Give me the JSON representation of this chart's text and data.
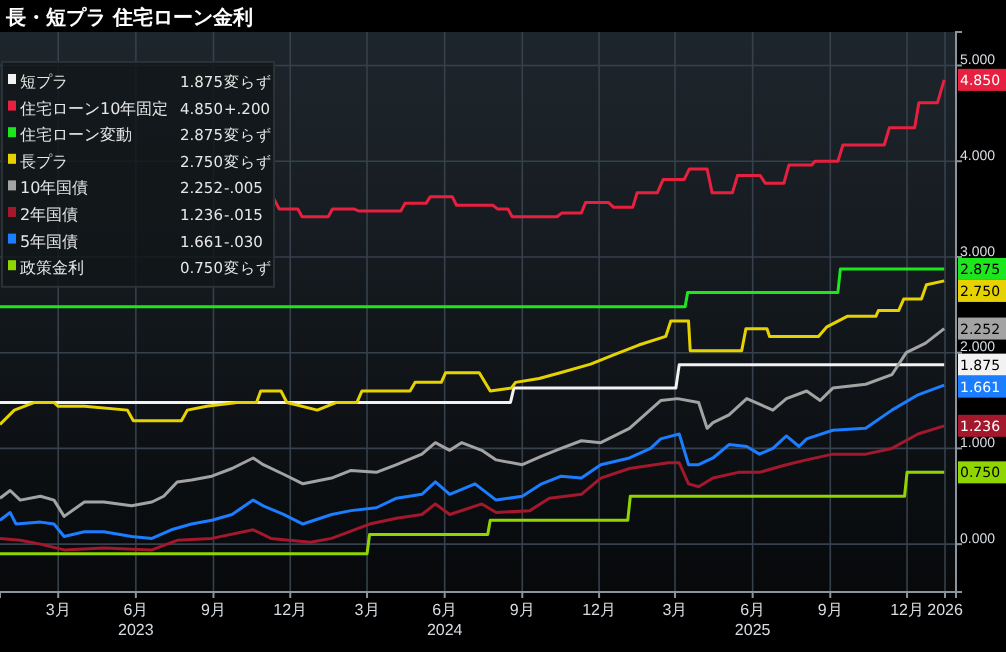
{
  "chart_data": {
    "type": "line",
    "title": "長・短プラ 住宅ローン金利",
    "xlim": [
      "2022-12-22",
      "2026-01-28"
    ],
    "xticks": [
      {
        "value": "2023-03-01",
        "label": "3月"
      },
      {
        "value": "2023-06-01",
        "label": "6月\n2023"
      },
      {
        "value": "2023-09-01",
        "label": "9月"
      },
      {
        "value": "2023-12-01",
        "label": "12月"
      },
      {
        "value": "2024-03-01",
        "label": "3月"
      },
      {
        "value": "2024-06-01",
        "label": "6月\n2024"
      },
      {
        "value": "2024-09-01",
        "label": "9月"
      },
      {
        "value": "2024-12-01",
        "label": "12月"
      },
      {
        "value": "2025-03-01",
        "label": "3月"
      },
      {
        "value": "2025-06-01",
        "label": "6月\n2025"
      },
      {
        "value": "2025-09-01",
        "label": "9月"
      },
      {
        "value": "2025-12-01",
        "label": "12月"
      },
      {
        "value": "2026-01-15",
        "label": "2026"
      }
    ],
    "ylim": [
      -0.5,
      5.35
    ],
    "yticks": [
      {
        "value": 0,
        "label": "0.000"
      },
      {
        "value": 1,
        "label": "1.000"
      },
      {
        "value": 2,
        "label": "2.000"
      },
      {
        "value": 3,
        "label": "3.000"
      },
      {
        "value": 4,
        "label": "4.000"
      },
      {
        "value": 5,
        "label": "5.000"
      }
    ],
    "grid": true,
    "legend": "top left",
    "marker": "none",
    "line_style": "solid",
    "annotations": [
      "変らず",
      "+.200",
      "変らず",
      "変らず",
      "-.005",
      "-.015",
      "-.030",
      "変らず"
    ],
    "series": [
      {
        "name": "短プラ",
        "color": "#f2f2f2",
        "x": [
          "2022-12-22",
          "2024-08-18",
          "2024-08-22",
          "2025-03-02",
          "2025-03-06",
          "2026-01-14"
        ],
        "values": [
          1.48,
          1.48,
          1.63,
          1.63,
          1.875,
          1.875
        ],
        "value_labels": [
          null,
          null,
          null,
          null,
          null,
          "1.875"
        ]
      },
      {
        "name": "住宅ローン10年固定",
        "color": "#e8203f",
        "x": [
          "2023-11-10",
          "2023-11-12",
          "2023-11-18",
          "2023-12-10",
          "2023-12-15",
          "2024-01-15",
          "2024-01-20",
          "2024-02-15",
          "2024-02-20",
          "2024-04-10",
          "2024-04-15",
          "2024-05-10",
          "2024-05-15",
          "2024-06-10",
          "2024-06-15",
          "2024-07-28",
          "2024-08-03",
          "2024-08-15",
          "2024-08-20",
          "2024-10-12",
          "2024-10-18",
          "2024-11-10",
          "2024-11-15",
          "2024-12-12",
          "2024-12-18",
          "2025-01-10",
          "2025-01-15",
          "2025-02-08",
          "2025-02-15",
          "2025-03-12",
          "2025-03-18",
          "2025-04-08",
          "2025-04-14",
          "2025-05-08",
          "2025-05-14",
          "2025-06-10",
          "2025-06-16",
          "2025-07-08",
          "2025-07-14",
          "2025-08-10",
          "2025-08-14",
          "2025-09-10",
          "2025-09-16",
          "2025-11-04",
          "2025-11-10",
          "2025-12-10",
          "2025-12-15",
          "2026-01-06",
          "2026-01-14"
        ],
        "values": [
          3.6,
          3.6,
          3.5,
          3.5,
          3.42,
          3.42,
          3.5,
          3.5,
          3.48,
          3.48,
          3.56,
          3.56,
          3.63,
          3.63,
          3.54,
          3.54,
          3.5,
          3.5,
          3.42,
          3.42,
          3.46,
          3.46,
          3.57,
          3.57,
          3.52,
          3.52,
          3.67,
          3.67,
          3.81,
          3.81,
          3.92,
          3.92,
          3.67,
          3.67,
          3.85,
          3.85,
          3.77,
          3.77,
          3.96,
          3.96,
          4.0,
          4.0,
          4.17,
          4.17,
          4.35,
          4.35,
          4.61,
          4.61,
          4.85
        ],
        "value_labels": [
          null,
          null,
          null,
          null,
          null,
          null,
          null,
          null,
          null,
          null,
          null,
          null,
          null,
          null,
          null,
          null,
          null,
          null,
          null,
          null,
          null,
          null,
          null,
          null,
          null,
          null,
          null,
          null,
          null,
          null,
          null,
          null,
          null,
          null,
          null,
          null,
          null,
          null,
          null,
          null,
          null,
          null,
          null,
          null,
          null,
          null,
          null,
          null,
          "4.850"
        ]
      },
      {
        "name": "住宅ローン変動",
        "color": "#1ee61e",
        "x": [
          "2022-12-22",
          "2025-03-13",
          "2025-03-16",
          "2025-09-10",
          "2025-09-13",
          "2026-01-14"
        ],
        "values": [
          2.48,
          2.48,
          2.63,
          2.63,
          2.875,
          2.875
        ],
        "value_labels": [
          null,
          null,
          null,
          null,
          null,
          "2.875"
        ]
      },
      {
        "name": "長プラ",
        "color": "#e6d200",
        "x": [
          "2022-12-22",
          "2023-01-08",
          "2023-02-01",
          "2023-02-24",
          "2023-03-01",
          "2023-04-01",
          "2023-05-22",
          "2023-05-29",
          "2023-07-25",
          "2023-08-01",
          "2023-08-24",
          "2023-09-29",
          "2023-10-22",
          "2023-10-27",
          "2023-11-20",
          "2023-11-27",
          "2024-01-02",
          "2024-01-25",
          "2024-02-18",
          "2024-02-24",
          "2024-04-21",
          "2024-04-27",
          "2024-05-28",
          "2024-06-02",
          "2024-07-12",
          "2024-07-25",
          "2024-08-19",
          "2024-08-24",
          "2024-09-21",
          "2024-10-16",
          "2024-11-21",
          "2024-12-19",
          "2025-01-17",
          "2025-02-18",
          "2025-02-24",
          "2025-03-17",
          "2025-03-19",
          "2025-05-19",
          "2025-05-24",
          "2025-06-18",
          "2025-06-21",
          "2025-08-18",
          "2025-08-28",
          "2025-09-21",
          "2025-10-25",
          "2025-10-28",
          "2025-11-21",
          "2025-11-27",
          "2025-12-18",
          "2025-12-24",
          "2026-01-14"
        ],
        "values": [
          1.25,
          1.4,
          1.48,
          1.48,
          1.44,
          1.44,
          1.4,
          1.29,
          1.29,
          1.4,
          1.44,
          1.48,
          1.48,
          1.6,
          1.6,
          1.48,
          1.4,
          1.48,
          1.48,
          1.6,
          1.6,
          1.69,
          1.69,
          1.79,
          1.79,
          1.6,
          1.63,
          1.69,
          1.73,
          1.79,
          1.88,
          1.98,
          2.08,
          2.17,
          2.33,
          2.33,
          2.02,
          2.02,
          2.25,
          2.25,
          2.17,
          2.17,
          2.27,
          2.38,
          2.38,
          2.44,
          2.44,
          2.56,
          2.56,
          2.71,
          2.75
        ],
        "value_labels": [
          null,
          null,
          null,
          null,
          null,
          null,
          null,
          null,
          null,
          null,
          null,
          null,
          null,
          null,
          null,
          null,
          null,
          null,
          null,
          null,
          null,
          null,
          null,
          null,
          null,
          null,
          null,
          null,
          null,
          null,
          null,
          null,
          null,
          null,
          null,
          null,
          null,
          null,
          null,
          null,
          null,
          null,
          null,
          null,
          null,
          null,
          null,
          null,
          null,
          null,
          "2.750"
        ]
      },
      {
        "name": "10年国債",
        "color": "#a3a3a3",
        "x": [
          "2022-12-22",
          "2023-01-03",
          "2023-01-15",
          "2023-02-08",
          "2023-02-24",
          "2023-03-08",
          "2023-04-01",
          "2023-04-24",
          "2023-05-27",
          "2023-06-20",
          "2023-07-04",
          "2023-07-20",
          "2023-08-06",
          "2023-08-30",
          "2023-09-23",
          "2023-10-18",
          "2023-10-30",
          "2023-11-23",
          "2023-12-16",
          "2024-01-19",
          "2024-02-11",
          "2024-03-12",
          "2024-04-05",
          "2024-05-05",
          "2024-05-21",
          "2024-06-07",
          "2024-06-21",
          "2024-07-15",
          "2024-08-01",
          "2024-09-01",
          "2024-09-24",
          "2024-10-17",
          "2024-11-10",
          "2024-12-03",
          "2025-01-06",
          "2025-02-12",
          "2025-03-04",
          "2025-03-29",
          "2025-04-08",
          "2025-04-15",
          "2025-05-04",
          "2025-05-25",
          "2025-06-25",
          "2025-07-11",
          "2025-08-04",
          "2025-08-20",
          "2025-09-04",
          "2025-10-13",
          "2025-11-13",
          "2025-11-30",
          "2025-12-23",
          "2026-01-14"
        ],
        "values": [
          0.48,
          0.56,
          0.46,
          0.5,
          0.46,
          0.29,
          0.44,
          0.44,
          0.4,
          0.44,
          0.5,
          0.65,
          0.67,
          0.71,
          0.79,
          0.9,
          0.83,
          0.73,
          0.63,
          0.69,
          0.77,
          0.75,
          0.83,
          0.94,
          1.06,
          0.98,
          1.06,
          0.98,
          0.88,
          0.83,
          0.92,
          1.0,
          1.08,
          1.06,
          1.21,
          1.5,
          1.52,
          1.48,
          1.21,
          1.27,
          1.35,
          1.52,
          1.4,
          1.52,
          1.6,
          1.5,
          1.63,
          1.67,
          1.77,
          2.0,
          2.1,
          2.252
        ],
        "value_labels": [
          null,
          null,
          null,
          null,
          null,
          null,
          null,
          null,
          null,
          null,
          null,
          null,
          null,
          null,
          null,
          null,
          null,
          null,
          null,
          null,
          null,
          null,
          null,
          null,
          null,
          null,
          null,
          null,
          null,
          null,
          null,
          null,
          null,
          null,
          null,
          null,
          null,
          null,
          null,
          null,
          null,
          null,
          null,
          null,
          null,
          null,
          null,
          null,
          null,
          null,
          null,
          "2.252"
        ]
      },
      {
        "name": "2年国債",
        "color": "#a3182c",
        "x": [
          "2022-12-22",
          "2023-01-15",
          "2023-02-08",
          "2023-03-08",
          "2023-04-24",
          "2023-06-20",
          "2023-07-20",
          "2023-08-30",
          "2023-10-18",
          "2023-11-08",
          "2023-12-25",
          "2024-01-19",
          "2024-03-04",
          "2024-04-05",
          "2024-05-05",
          "2024-05-21",
          "2024-06-07",
          "2024-07-15",
          "2024-08-01",
          "2024-09-10",
          "2024-10-03",
          "2024-11-10",
          "2024-12-03",
          "2025-01-06",
          "2025-02-21",
          "2025-03-06",
          "2025-03-17",
          "2025-03-29",
          "2025-04-15",
          "2025-05-15",
          "2025-06-09",
          "2025-07-11",
          "2025-08-04",
          "2025-09-04",
          "2025-10-13",
          "2025-11-13",
          "2025-12-14",
          "2026-01-14"
        ],
        "values": [
          0.06,
          0.04,
          0.0,
          -0.06,
          -0.04,
          -0.06,
          0.04,
          0.06,
          0.15,
          0.06,
          0.02,
          0.06,
          0.21,
          0.27,
          0.31,
          0.42,
          0.31,
          0.42,
          0.33,
          0.35,
          0.48,
          0.52,
          0.69,
          0.79,
          0.85,
          0.85,
          0.63,
          0.6,
          0.69,
          0.75,
          0.75,
          0.83,
          0.88,
          0.94,
          0.94,
          1.0,
          1.15,
          1.236
        ],
        "value_labels": [
          null,
          null,
          null,
          null,
          null,
          null,
          null,
          null,
          null,
          null,
          null,
          null,
          null,
          null,
          null,
          null,
          null,
          null,
          null,
          null,
          null,
          null,
          null,
          null,
          null,
          null,
          null,
          null,
          null,
          null,
          null,
          null,
          null,
          null,
          null,
          null,
          null,
          "1.236"
        ]
      },
      {
        "name": "5年国債",
        "color": "#1b7dff",
        "x": [
          "2022-12-22",
          "2023-01-03",
          "2023-01-10",
          "2023-02-08",
          "2023-02-24",
          "2023-03-08",
          "2023-04-01",
          "2023-04-24",
          "2023-05-27",
          "2023-06-20",
          "2023-07-13",
          "2023-08-06",
          "2023-08-30",
          "2023-09-23",
          "2023-10-18",
          "2023-10-30",
          "2023-11-23",
          "2023-12-16",
          "2024-01-19",
          "2024-02-11",
          "2024-03-12",
          "2024-04-05",
          "2024-05-05",
          "2024-05-21",
          "2024-06-07",
          "2024-07-07",
          "2024-08-01",
          "2024-09-01",
          "2024-09-24",
          "2024-10-17",
          "2024-11-10",
          "2024-12-03",
          "2025-01-06",
          "2025-01-31",
          "2025-02-12",
          "2025-03-06",
          "2025-03-17",
          "2025-03-29",
          "2025-04-15",
          "2025-05-04",
          "2025-05-25",
          "2025-06-09",
          "2025-06-25",
          "2025-07-11",
          "2025-07-26",
          "2025-08-04",
          "2025-09-04",
          "2025-10-13",
          "2025-11-13",
          "2025-12-14",
          "2026-01-14"
        ],
        "values": [
          0.25,
          0.33,
          0.21,
          0.23,
          0.21,
          0.08,
          0.13,
          0.13,
          0.08,
          0.06,
          0.15,
          0.21,
          0.25,
          0.31,
          0.46,
          0.4,
          0.31,
          0.21,
          0.31,
          0.35,
          0.38,
          0.48,
          0.52,
          0.65,
          0.52,
          0.63,
          0.46,
          0.5,
          0.63,
          0.71,
          0.69,
          0.83,
          0.9,
          1.0,
          1.1,
          1.15,
          0.83,
          0.83,
          0.9,
          1.04,
          1.02,
          0.94,
          1.0,
          1.13,
          1.02,
          1.1,
          1.19,
          1.21,
          1.4,
          1.56,
          1.661
        ],
        "value_labels": [
          null,
          null,
          null,
          null,
          null,
          null,
          null,
          null,
          null,
          null,
          null,
          null,
          null,
          null,
          null,
          null,
          null,
          null,
          null,
          null,
          null,
          null,
          null,
          null,
          null,
          null,
          null,
          null,
          null,
          null,
          null,
          null,
          null,
          null,
          null,
          null,
          null,
          null,
          null,
          null,
          null,
          null,
          null,
          null,
          null,
          null,
          null,
          null,
          null,
          null,
          "1.661"
        ]
      },
      {
        "name": "政策金利",
        "color": "#8fd600",
        "x": [
          "2022-12-22",
          "2024-03-01",
          "2024-03-04",
          "2024-07-22",
          "2024-07-25",
          "2025-01-04",
          "2025-01-07",
          "2025-11-28",
          "2025-12-01",
          "2026-01-14"
        ],
        "values": [
          -0.1,
          -0.1,
          0.1,
          0.1,
          0.25,
          0.25,
          0.5,
          0.5,
          0.75,
          0.75
        ],
        "value_labels": [
          null,
          null,
          null,
          null,
          null,
          null,
          null,
          null,
          null,
          "0.750"
        ]
      }
    ]
  }
}
